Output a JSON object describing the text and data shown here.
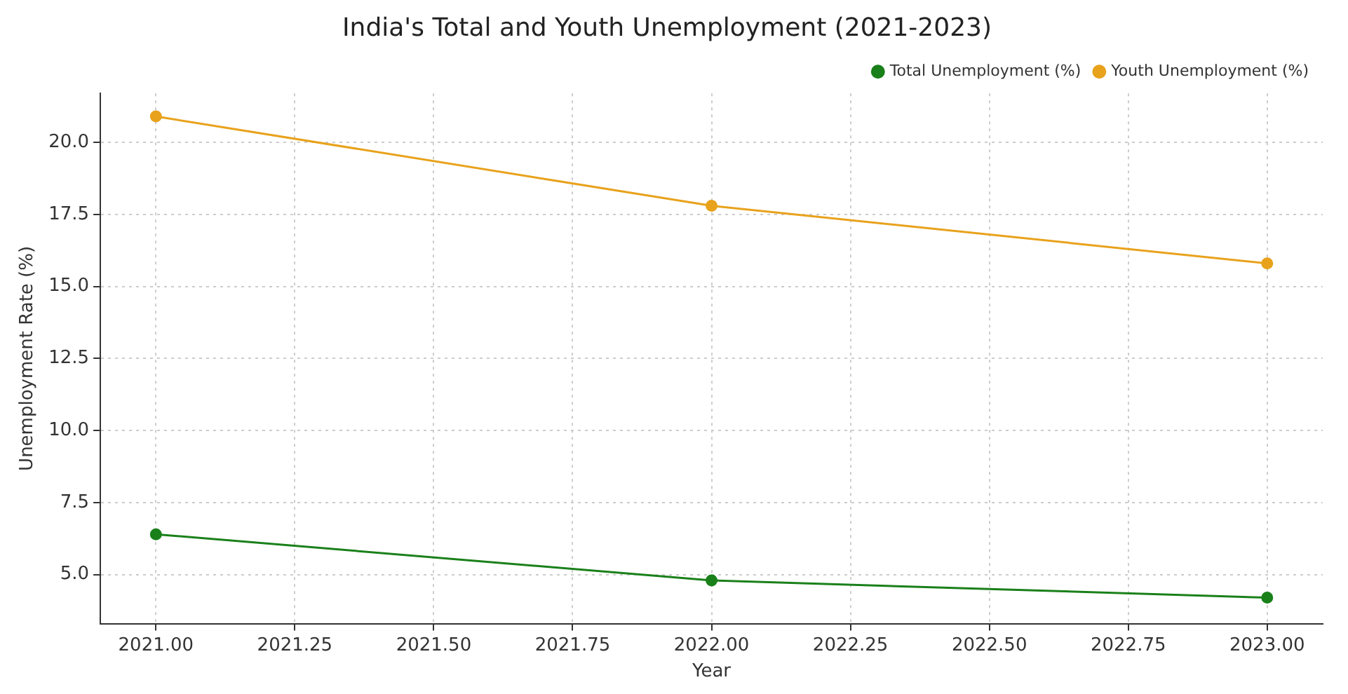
{
  "chart_data": {
    "type": "line",
    "title": "India's Total and Youth Unemployment (2021-2023)",
    "xlabel": "Year",
    "ylabel": "Unemployment Rate (%)",
    "x": [
      2021,
      2022,
      2023
    ],
    "series": [
      {
        "name": "Total Unemployment (%)",
        "color": "#1a801a",
        "values": [
          6.4,
          4.8,
          4.2
        ]
      },
      {
        "name": "Youth Unemployment (%)",
        "color": "#e8a21c",
        "values": [
          20.9,
          17.8,
          15.8
        ]
      }
    ],
    "xlim": [
      2020.9,
      2023.1
    ],
    "xticks": [
      {
        "value": 2021,
        "label": "2021.00"
      },
      2021.25,
      {
        "value": 2021.5,
        "label": "2021.50"
      },
      2021.75,
      {
        "value": 2022,
        "label": "2022.00"
      },
      2022.25,
      {
        "value": 2022.5,
        "label": "2022.50"
      },
      2022.75,
      {
        "value": 2023,
        "label": "2023.00"
      }
    ],
    "ylim": [
      3.3,
      21.7
    ],
    "yticks": [
      {
        "value": 5,
        "label": "5.0"
      },
      7.5,
      {
        "value": 10,
        "label": "10.0"
      },
      12.5,
      {
        "value": 15,
        "label": "15.0"
      },
      17.5,
      {
        "value": 20,
        "label": "20.0"
      }
    ],
    "grid": true,
    "legend": "top right",
    "marker": "circle",
    "line_style": "solid"
  }
}
